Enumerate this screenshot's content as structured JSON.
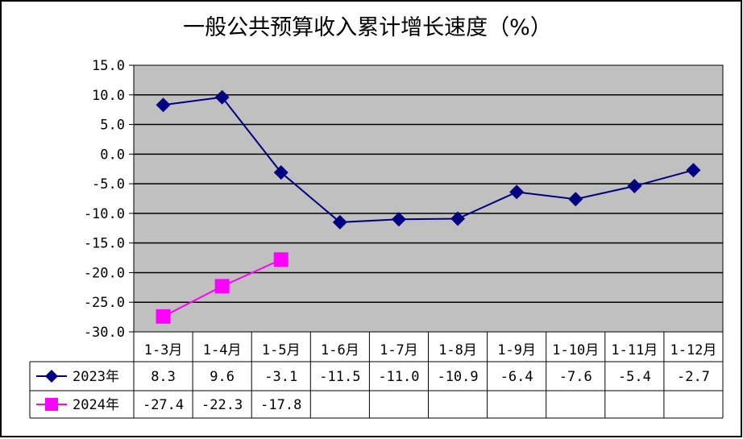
{
  "chart_data": {
    "type": "line",
    "title": "一般公共预算收入累计增长速度（%）",
    "xlabel": "",
    "ylabel": "",
    "categories": [
      "1-3月",
      "1-4月",
      "1-5月",
      "1-6月",
      "1-7月",
      "1-8月",
      "1-9月",
      "1-10月",
      "1-11月",
      "1-12月"
    ],
    "ylim": [
      -30,
      15
    ],
    "yticks": [
      "15.0",
      "10.0",
      "5.0",
      "0.0",
      "-5.0",
      "-10.0",
      "-15.0",
      "-20.0",
      "-25.0",
      "-30.0"
    ],
    "grid": true,
    "legend_position": "data-table-left",
    "plot_background": "#C0C0C0",
    "series": [
      {
        "name": "2023年",
        "color": "#000080",
        "marker": "diamond",
        "values": [
          8.3,
          9.6,
          -3.1,
          -11.5,
          -11.0,
          -10.9,
          -6.4,
          -7.6,
          -5.4,
          -2.7
        ],
        "labels": [
          "8.3",
          "9.6",
          "-3.1",
          "-11.5",
          "-11.0",
          "-10.9",
          "-6.4",
          "-7.6",
          "-5.4",
          "-2.7"
        ]
      },
      {
        "name": "2024年",
        "color": "#FF00FF",
        "marker": "square",
        "values": [
          -27.4,
          -22.3,
          -17.8,
          null,
          null,
          null,
          null,
          null,
          null,
          null
        ],
        "labels": [
          "-27.4",
          "-22.3",
          "-17.8",
          "",
          "",
          "",
          "",
          "",
          "",
          ""
        ]
      }
    ]
  }
}
